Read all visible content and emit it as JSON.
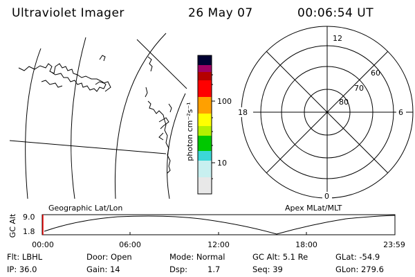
{
  "header": {
    "title": "Ultraviolet Imager",
    "date": "26 May 07",
    "time": "00:06:54 UT"
  },
  "colorbar": {
    "label": "photon cm⁻²s⁻¹",
    "ticks": [
      {
        "label": "100",
        "value": 100
      },
      {
        "label": "10",
        "value": 10
      }
    ],
    "colors": [
      "#e8e8e8",
      "#c8f0f0",
      "#3cd7d7",
      "#00c800",
      "#b4f000",
      "#ffff00",
      "#ffa000",
      "#ff0000",
      "#b40000",
      "#a00064",
      "#000032"
    ]
  },
  "polar_plot": {
    "label_top": "12",
    "label_left": "18",
    "label_right": "6",
    "label_bottom": "0",
    "lat_labels": [
      "60",
      "70",
      "80"
    ]
  },
  "altitude_plot": {
    "left_label": "Geographic Lat/Lon",
    "right_label": "Apex MLat/MLT",
    "y_title": "GC Alt",
    "y_ticks": [
      "9.0",
      "1.8"
    ],
    "x_ticks": [
      "00:00",
      "06:00",
      "12:00",
      "18:00",
      "23:59"
    ]
  },
  "info": {
    "row1": {
      "flt": "Flt: LBHL",
      "door": "Door: Open",
      "mode": "Mode: Normal",
      "gcalt": "GC Alt: 5.1 Re",
      "glat": "GLat: -54.9"
    },
    "row2": {
      "ip": "IP: 36.0",
      "gain": "Gain: 14",
      "dsp_label": "Dsp:",
      "dsp_value": "1.7",
      "seq": "Seq: 39",
      "glon": "GLon: 279.6"
    }
  }
}
